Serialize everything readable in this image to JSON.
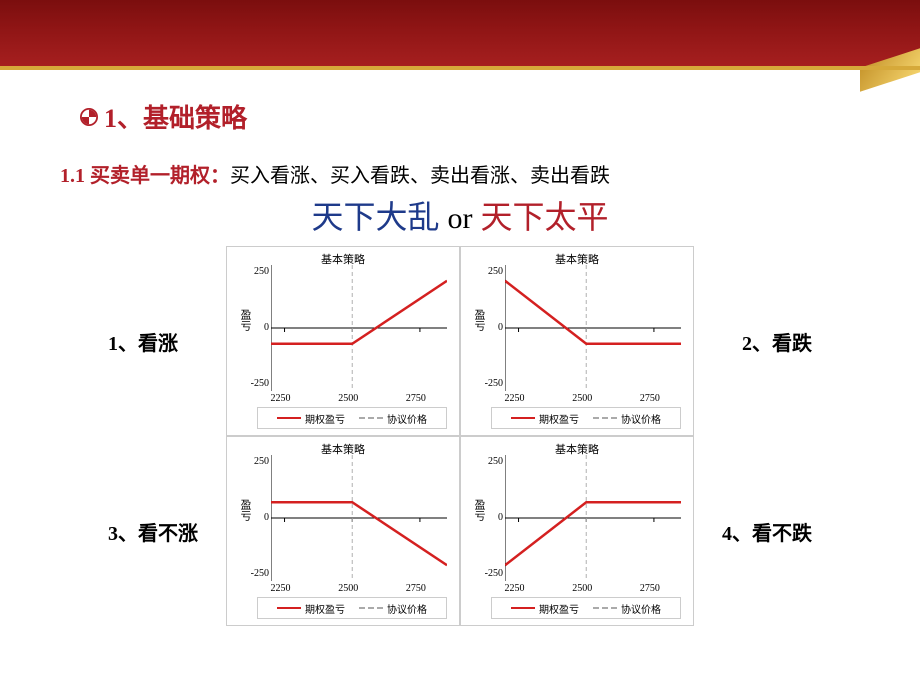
{
  "heading1": "1、基础策略",
  "heading2_prefix": "1.1 买卖单一期权：",
  "heading2_rest": "买入看涨、买入看跌、卖出看涨、卖出看跌",
  "quote_left": "天下大乱",
  "quote_or": "or",
  "quote_right": "天下太平",
  "side_labels": {
    "1": "1、看涨",
    "2": "2、看跌",
    "3": "3、看不涨",
    "4": "4、看不跌"
  },
  "chart_common": {
    "title": "基本策略",
    "ylabel": "盈亏",
    "xticks": [
      2250,
      2500,
      2750
    ],
    "yticks": [
      -250,
      0,
      250
    ],
    "strike_x": 2500,
    "xlim": [
      2200,
      2850
    ],
    "ylim": [
      -280,
      280
    ],
    "line_color": "#d42020",
    "line_width": 2.5,
    "dash_color": "#b0b0b0",
    "border_color": "#cccccc",
    "background": "#ffffff",
    "legend_pnl": "期权盈亏",
    "legend_strike": "协议价格"
  },
  "charts": [
    {
      "id": 1,
      "points": [
        [
          2200,
          -70
        ],
        [
          2500,
          -70
        ],
        [
          2850,
          210
        ]
      ]
    },
    {
      "id": 2,
      "points": [
        [
          2200,
          210
        ],
        [
          2500,
          -70
        ],
        [
          2850,
          -70
        ]
      ]
    },
    {
      "id": 3,
      "points": [
        [
          2200,
          70
        ],
        [
          2500,
          70
        ],
        [
          2850,
          -210
        ]
      ]
    },
    {
      "id": 4,
      "points": [
        [
          2200,
          -210
        ],
        [
          2500,
          70
        ],
        [
          2850,
          70
        ]
      ]
    }
  ]
}
